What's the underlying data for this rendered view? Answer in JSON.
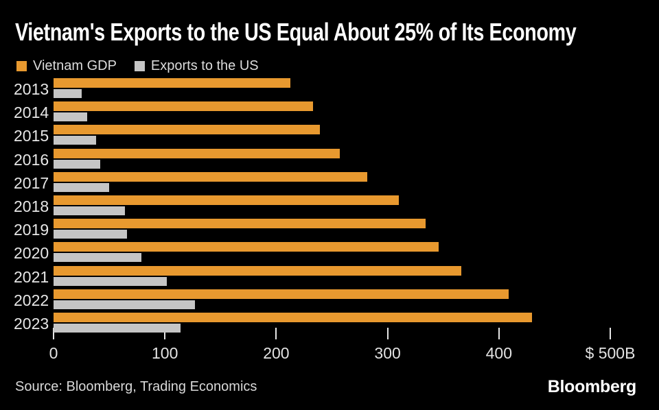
{
  "title": "Vietnam's Exports to the US Equal About 25% of Its Economy",
  "legend": [
    {
      "label": "Vietnam GDP",
      "color": "#E8992F"
    },
    {
      "label": "Exports to the US",
      "color": "#C5C5C5"
    }
  ],
  "chart_data": {
    "type": "bar",
    "orientation": "horizontal",
    "title": "Vietnam's Exports to the US Equal About 25% of Its Economy",
    "unit": "USD billions",
    "categories": [
      "2013",
      "2014",
      "2015",
      "2016",
      "2017",
      "2018",
      "2019",
      "2020",
      "2021",
      "2022",
      "2023"
    ],
    "series": [
      {
        "name": "Vietnam GDP",
        "color": "#E8992F",
        "values": [
          213,
          233,
          239,
          257,
          282,
          310,
          334,
          346,
          366,
          409,
          430
        ]
      },
      {
        "name": "Exports to the US",
        "color": "#C5C5C5",
        "values": [
          25,
          30,
          38,
          42,
          50,
          64,
          66,
          79,
          102,
          127,
          114
        ]
      }
    ],
    "xlim": [
      0,
      500
    ],
    "x_ticks": [
      {
        "value": 0,
        "label": "0"
      },
      {
        "value": 100,
        "label": "100"
      },
      {
        "value": 200,
        "label": "200"
      },
      {
        "value": 300,
        "label": "300"
      },
      {
        "value": 400,
        "label": "400"
      },
      {
        "value": 500,
        "label": "$ 500B"
      }
    ],
    "grid": false,
    "legend_position": "top-left",
    "background": "#000000"
  },
  "footer": {
    "source": "Source: Bloomberg, Trading Economics",
    "brand": "Bloomberg"
  }
}
